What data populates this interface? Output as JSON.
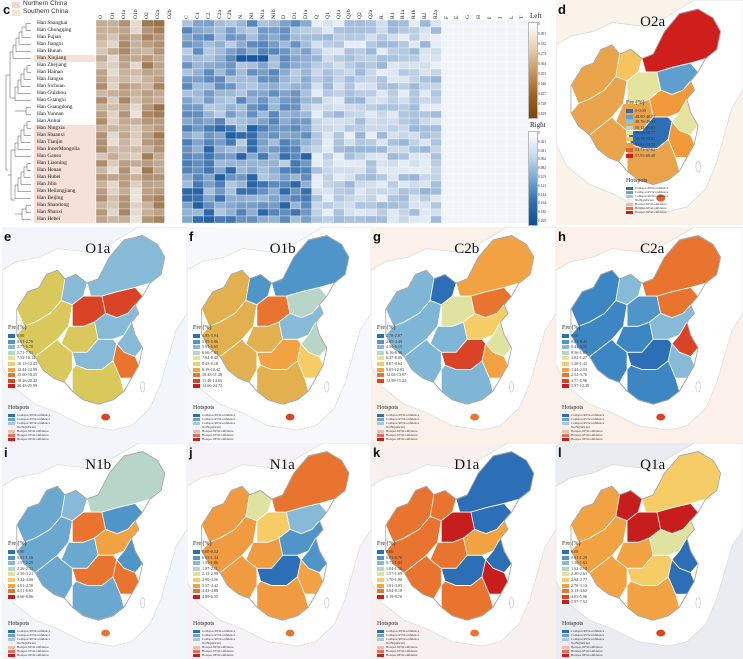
{
  "panel_c": {
    "letter": "c",
    "key": [
      {
        "label": "Northern China",
        "color": "#f2d6c9"
      },
      {
        "label": "Southern China",
        "color": "#f7e6cf"
      }
    ],
    "rows": [
      "Han Shanghai",
      "Han Chongqing",
      "Han Fujian",
      "Han Jiangxi",
      "Han Hunan",
      "Han Xinjiang",
      "Han Zhejiang",
      "Han Hainan",
      "Han Jiangsu",
      "Han Sichuan",
      "Han Guizhou",
      "Han Guangxi",
      "Han Guangdong",
      "Han Yunnan",
      "Han Anhui",
      "Han Ningxia",
      "Han Shaanxi",
      "Han Tianjin",
      "Han InnerMongolia",
      "Han Gansu",
      "Han Liaoning",
      "Han Henan",
      "Han Hubei",
      "Han Jilin",
      "Han Heilongjiang",
      "Han Beijing",
      "Han Shandong",
      "Han Shanxi",
      "Han Hebei"
    ],
    "left_cols": [
      "O",
      "O1",
      "O1a",
      "O1b",
      "O2",
      "O2a",
      "O2b"
    ],
    "right_cols": [
      "C",
      "C1",
      "C2",
      "C2a",
      "C2b",
      "N",
      "N1",
      "N1a",
      "N1b",
      "D",
      "D1",
      "D1a",
      "Q",
      "Q1",
      "Q1a",
      "Q1b",
      "Q2",
      "Q2a",
      "R",
      "R1",
      "R1a",
      "R1b",
      "R2",
      "R2a",
      "F",
      "E",
      "G",
      "H",
      "I",
      "J",
      "L",
      "T"
    ],
    "colorbar_left": {
      "label": "Left",
      "ticks": [
        "0",
        "0.091",
        "0.182",
        "0.273",
        "0.364",
        "0.455",
        "0.546",
        "0.637",
        "0.728",
        "0.819"
      ]
    },
    "colorbar_right": {
      "label": "Right",
      "ticks": [
        "0",
        "0.021",
        "0.041",
        "0.062",
        "0.082",
        "0.103",
        "0.123",
        "0.144",
        "0.164",
        "0.185",
        "0.205"
      ]
    }
  },
  "maps": [
    {
      "letter": "d",
      "title": "O2a",
      "bg": "#f9f3ea",
      "fill": "#e9a34a",
      "legend": [
        "0-0.00",
        "48.90-48.77",
        "48.78-49.31",
        "50.12-49.93",
        "49.56-50.77",
        "50.78-53.61",
        "53.62-53.72",
        "53.73-57.92",
        "57.93-68.48"
      ],
      "colors": [
        "#2c6fb7",
        "#5e9fcf",
        "#8fc1dd",
        "#b9d8c2",
        "#e4e49e",
        "#f7c35f",
        "#f29a3a",
        "#e4602a",
        "#cf1f1d"
      ]
    },
    {
      "letter": "e",
      "title": "O1a",
      "bg": "#f2f5fa",
      "fill": "#d9c95c",
      "legend": [
        "0.00",
        "0.01-2.76",
        "2.77-5.70",
        "5.71-7.51",
        "7.52-10.14",
        "10.15-12.43",
        "12.44-14.99",
        "15.00-18.25",
        "18.26-20.42",
        "20.43-25.99"
      ],
      "colors": [
        "#2c6fb7",
        "#4f95c8",
        "#86bad6",
        "#b7d6c8",
        "#e0e2a0",
        "#f6cc66",
        "#f2a243",
        "#e8742f",
        "#d94426",
        "#c81d1d"
      ]
    },
    {
      "letter": "f",
      "title": "O1b",
      "bg": "#f7f8fb",
      "fill": "#e2b04f",
      "legend": [
        "1.85-5.94",
        "5.95-5.96",
        "5.97-6.65",
        "6.66-7.63",
        "7.64-8.42",
        "8.43-9.18",
        "9.19-10.42",
        "10.43-11.48",
        "11.49-14.65",
        "14.66-24.72"
      ],
      "colors": [
        "#2c6fb7",
        "#4f95c8",
        "#86bad6",
        "#b7d6c8",
        "#e0e2a0",
        "#f6cc66",
        "#f2a243",
        "#e8742f",
        "#d94426",
        "#c81d1d"
      ]
    },
    {
      "letter": "g",
      "title": "C2b",
      "bg": "#fbf1ea",
      "fill": "#7fb6d6",
      "legend": [
        "2.78-2.87",
        "2.85-4.49",
        "4.50-6.15",
        "6.16-6.36",
        "6.37-8.06",
        "8.07-9.64",
        "9.65-12.03",
        "12.04-13.97",
        "13.98-15.22"
      ],
      "colors": [
        "#2c6fb7",
        "#4f95c8",
        "#86bad6",
        "#b7d6c8",
        "#e0e2a0",
        "#f6cc66",
        "#f2a243",
        "#e8742f",
        "#d94426"
      ]
    },
    {
      "letter": "h",
      "title": "C2a",
      "bg": "#fbf1ea",
      "fill": "#3c86c3",
      "legend": [
        "0.00",
        "0.01-0.43",
        "0.44-0.55",
        "0.56-1.01",
        "1.02-1.27",
        "1.28-1.43",
        "1.44-2.53",
        "2.54-3.76",
        "3.77-5.96",
        "5.97-12.39"
      ],
      "colors": [
        "#2c6fb7",
        "#4f95c8",
        "#86bad6",
        "#b7d6c8",
        "#e0e2a0",
        "#f6cc66",
        "#f2a243",
        "#e8742f",
        "#d94426",
        "#c81d1d"
      ]
    },
    {
      "letter": "i",
      "title": "N1b",
      "bg": "#f2f5fa",
      "fill": "#6aa8d0",
      "legend": [
        "0.00",
        "0.01-1.56",
        "1.57-2.25",
        "2.26-2.31",
        "2.30-3.21",
        "3.22-4.00",
        "4.01-4.50",
        "4.51-6.65",
        "6.66-8.06"
      ],
      "colors": [
        "#2c6fb7",
        "#4f95c8",
        "#86bad6",
        "#b7d6c8",
        "#e0e2a0",
        "#f6cc66",
        "#f2a243",
        "#e8742f",
        "#c81d1d"
      ]
    },
    {
      "letter": "j",
      "title": "N1a",
      "bg": "#f5f3f7",
      "fill": "#f09a42",
      "legend": [
        "0.00-0.52",
        "0.53-1.34",
        "1.35-1.86",
        "1.87-2.11",
        "2.12-2.98",
        "2.99-3.56",
        "3.57-4.42",
        "4.43-4.88",
        "4.89-6.55"
      ],
      "colors": [
        "#2c6fb7",
        "#4f95c8",
        "#86bad6",
        "#b7d6c8",
        "#e0e2a0",
        "#f6cc66",
        "#f2a243",
        "#e8742f",
        "#c81d1d"
      ]
    },
    {
      "letter": "k",
      "title": "D1a",
      "bg": "#f7f0ee",
      "fill": "#e8742f",
      "legend": [
        "0.00",
        "0.01-0.70",
        "0.71-1.03",
        "1.04-1.56",
        "1.57-1.69",
        "1.70-1.90",
        "1.91-3.03",
        "3.04-8.18",
        "8.19-9.76"
      ],
      "colors": [
        "#2c6fb7",
        "#4f95c8",
        "#86bad6",
        "#b7d6c8",
        "#e0e2a0",
        "#f6cc66",
        "#f2a243",
        "#e8742f",
        "#c81d1d"
      ]
    },
    {
      "letter": "l",
      "title": "Q1a",
      "bg": "#e9ecf1",
      "fill": "#f2a243",
      "legend": [
        "0.00",
        "0.01-1.29",
        "1.30-1.61",
        "1.62-2.19",
        "2.20-2.61",
        "2.62-2.77",
        "2.78-3.12",
        "3.13-4.62",
        "4.63-5.96",
        "5.97-7.52"
      ],
      "colors": [
        "#2c6fb7",
        "#4f95c8",
        "#86bad6",
        "#b7d6c8",
        "#e0e2a0",
        "#f6cc66",
        "#f2a243",
        "#e8742f",
        "#d94426",
        "#c81d1d"
      ]
    }
  ],
  "map_legend_title": "Fre (%)",
  "hotspots_title": "Hotspots",
  "hotspots_rows": [
    "Coldspot-99%Confidence",
    "Coldspot-95%Confidence",
    "Coldspot-90%Confidence",
    "NotSignificant",
    "Hotspot-90%Confidence",
    "Hotspot-95%Confidence",
    "Hotspot-99%Confidence"
  ],
  "hotspots_colors": [
    "#2c6fb7",
    "#6f9fcf",
    "#a9c4e0",
    "#f0f0ee",
    "#f2b8a8",
    "#e36e5a",
    "#c81d1d"
  ]
}
